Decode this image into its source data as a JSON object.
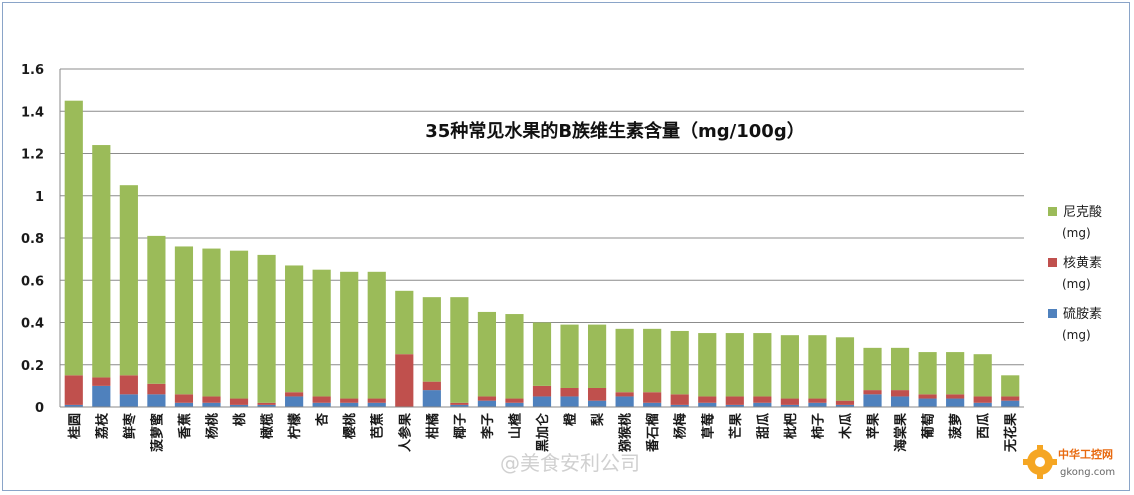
{
  "chart_data": {
    "type": "bar",
    "stacked": true,
    "title": "35种常见水果的B族维生素含量（mg/100g）",
    "categories": [
      "桂圆",
      "荔枝",
      "鲜枣",
      "菠萝蜜",
      "香蕉",
      "杨桃",
      "桃",
      "橄榄",
      "柠檬",
      "杏",
      "樱桃",
      "芭蕉",
      "人参果",
      "柑橘",
      "椰子",
      "李子",
      "山楂",
      "黑加仑",
      "橙",
      "梨",
      "猕猴桃",
      "番石榴",
      "杨梅",
      "草莓",
      "芒果",
      "甜瓜",
      "枇杷",
      "柿子",
      "木瓜",
      "苹果",
      "海棠果",
      "葡萄",
      "菠萝",
      "西瓜",
      "无花果"
    ],
    "series": [
      {
        "name": "硫胺素",
        "unit": "(mg)",
        "color": "#4f81bd",
        "values": [
          0.01,
          0.1,
          0.06,
          0.06,
          0.02,
          0.02,
          0.01,
          0.01,
          0.05,
          0.02,
          0.02,
          0.02,
          0.0,
          0.08,
          0.01,
          0.03,
          0.02,
          0.05,
          0.05,
          0.03,
          0.05,
          0.02,
          0.01,
          0.02,
          0.01,
          0.02,
          0.01,
          0.02,
          0.01,
          0.06,
          0.05,
          0.04,
          0.04,
          0.02,
          0.03
        ]
      },
      {
        "name": "核黄素",
        "unit": "(mg)",
        "color": "#c0504d",
        "values": [
          0.14,
          0.04,
          0.09,
          0.05,
          0.04,
          0.03,
          0.03,
          0.01,
          0.02,
          0.03,
          0.02,
          0.02,
          0.25,
          0.04,
          0.01,
          0.02,
          0.02,
          0.05,
          0.04,
          0.06,
          0.02,
          0.05,
          0.05,
          0.03,
          0.04,
          0.03,
          0.03,
          0.02,
          0.02,
          0.02,
          0.03,
          0.02,
          0.02,
          0.03,
          0.02
        ]
      },
      {
        "name": "尼克酸",
        "unit": "(mg)",
        "color": "#9bbb59",
        "values": [
          1.3,
          1.1,
          0.9,
          0.7,
          0.7,
          0.7,
          0.7,
          0.7,
          0.6,
          0.6,
          0.6,
          0.6,
          0.3,
          0.4,
          0.5,
          0.4,
          0.4,
          0.3,
          0.3,
          0.3,
          0.3,
          0.3,
          0.3,
          0.3,
          0.3,
          0.3,
          0.3,
          0.3,
          0.3,
          0.2,
          0.2,
          0.2,
          0.2,
          0.2,
          0.1
        ]
      }
    ],
    "ylim": [
      0,
      1.6
    ],
    "yticks": [
      0,
      0.2,
      0.4,
      0.6,
      0.8,
      1,
      1.2,
      1.4,
      1.6
    ],
    "ytick_labels": [
      "0",
      "0.2",
      "0.4",
      "0.6",
      "0.8",
      "1",
      "1.2",
      "1.4",
      "1.6"
    ],
    "grid": true,
    "legend_position": "right"
  },
  "watermark": "@美食安利公司",
  "logo": {
    "name": "中华工控网",
    "url_text": "gkong.com",
    "icon": "gear-icon"
  }
}
